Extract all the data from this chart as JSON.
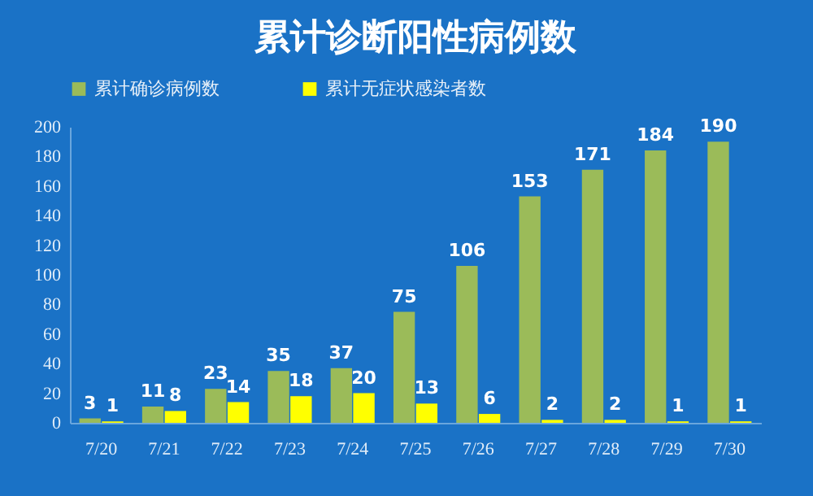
{
  "chart_data": {
    "type": "bar",
    "title": "累计诊断阳性病例数",
    "categories": [
      "7/20",
      "7/21",
      "7/22",
      "7/23",
      "7/24",
      "7/25",
      "7/26",
      "7/27",
      "7/28",
      "7/29",
      "7/30"
    ],
    "series": [
      {
        "name": "累计确诊病例数",
        "color": "#9bbb59",
        "values": [
          3,
          11,
          23,
          35,
          37,
          75,
          106,
          153,
          171,
          184,
          190
        ]
      },
      {
        "name": "累计无症状感染者数",
        "color": "#ffff00",
        "values": [
          1,
          8,
          14,
          18,
          20,
          13,
          6,
          2,
          2,
          1,
          1
        ]
      }
    ],
    "ylim": [
      0,
      200
    ],
    "yticks": [
      0,
      20,
      40,
      60,
      80,
      100,
      120,
      140,
      160,
      180,
      200
    ],
    "grid": false,
    "legend": "top",
    "data_labels": true
  }
}
